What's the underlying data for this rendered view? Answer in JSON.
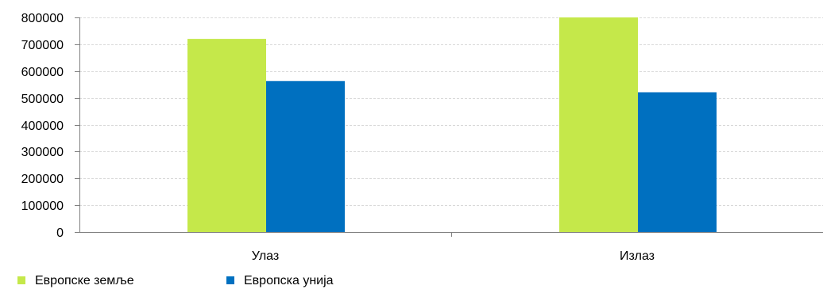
{
  "chart_data": {
    "type": "bar",
    "categories": [
      "Улаз",
      "Излаз"
    ],
    "series": [
      {
        "name": "Европске земље",
        "color": "#c5e84a",
        "values": [
          720000,
          800000
        ]
      },
      {
        "name": "Европска унија",
        "color": "#0070c0",
        "values": [
          563000,
          521000
        ]
      }
    ],
    "ylim": [
      0,
      800000
    ],
    "yticks": [
      0,
      100000,
      200000,
      300000,
      400000,
      500000,
      600000,
      700000,
      800000
    ],
    "ytick_labels": [
      "0",
      "100000",
      "200000",
      "300000",
      "400000",
      "500000",
      "600000",
      "700000",
      "800000"
    ],
    "grid": true,
    "grid_color": "#d9d9d9",
    "axis_color": "#808080",
    "legend_position": "bottom-left",
    "title": "",
    "xlabel": "",
    "ylabel": ""
  }
}
